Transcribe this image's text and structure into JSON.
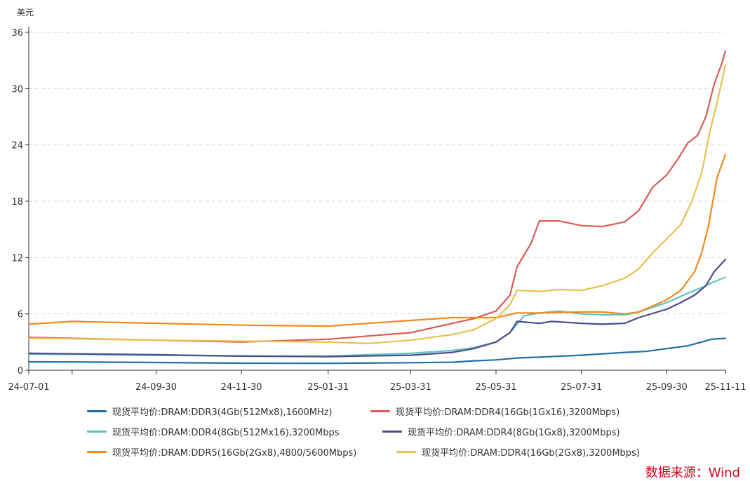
{
  "chart_data": {
    "type": "line",
    "unit_label": "美元",
    "x_start": "24-07-01",
    "x_end": "25-11-11",
    "xtick_labels": [
      "24-07-01",
      "24-09-30",
      "24-11-30",
      "25-01-31",
      "25-03-31",
      "25-05-31",
      "25-07-31",
      "25-09-30",
      "25-11-11"
    ],
    "xtick_minor": [
      "24-08-01"
    ],
    "ylim": [
      0,
      36
    ],
    "yticks": [
      0,
      6,
      12,
      18,
      24,
      30,
      36
    ],
    "grid": "horizontal-dashed",
    "legend_position": "bottom",
    "series": [
      {
        "name": "现货平均价:DRAM:DDR3(4Gb(512Mx8),1600MHz)",
        "color": "#1f6fa5",
        "points": [
          [
            "24-07-01",
            0.9
          ],
          [
            "24-08-01",
            0.88
          ],
          [
            "24-09-30",
            0.82
          ],
          [
            "24-11-30",
            0.75
          ],
          [
            "25-01-31",
            0.73
          ],
          [
            "25-03-31",
            0.8
          ],
          [
            "25-04-30",
            0.85
          ],
          [
            "25-05-15",
            1.0
          ],
          [
            "25-05-31",
            1.1
          ],
          [
            "25-06-15",
            1.3
          ],
          [
            "25-07-01",
            1.4
          ],
          [
            "25-07-31",
            1.6
          ],
          [
            "25-08-31",
            1.9
          ],
          [
            "25-09-15",
            2.0
          ],
          [
            "25-09-30",
            2.3
          ],
          [
            "25-10-15",
            2.6
          ],
          [
            "25-10-25",
            3.0
          ],
          [
            "25-11-01",
            3.3
          ],
          [
            "25-11-11",
            3.4
          ]
        ]
      },
      {
        "name": "现货平均价:DRAM:DDR4(16Gb(1Gx16),3200Mbps)",
        "color": "#dd5b56",
        "points": [
          [
            "24-07-01",
            3.5
          ],
          [
            "24-08-01",
            3.4
          ],
          [
            "24-09-30",
            3.2
          ],
          [
            "24-11-30",
            3.0
          ],
          [
            "25-01-31",
            3.3
          ],
          [
            "25-03-31",
            4.0
          ],
          [
            "25-04-30",
            5.0
          ],
          [
            "25-05-15",
            5.5
          ],
          [
            "25-05-31",
            6.3
          ],
          [
            "25-06-10",
            8.0
          ],
          [
            "25-06-15",
            11.0
          ],
          [
            "25-06-25",
            13.5
          ],
          [
            "25-07-01",
            15.9
          ],
          [
            "25-07-15",
            15.9
          ],
          [
            "25-07-31",
            15.4
          ],
          [
            "25-08-15",
            15.3
          ],
          [
            "25-08-31",
            15.8
          ],
          [
            "25-09-10",
            17.0
          ],
          [
            "25-09-20",
            19.5
          ],
          [
            "25-09-30",
            20.8
          ],
          [
            "25-10-08",
            22.5
          ],
          [
            "25-10-15",
            24.2
          ],
          [
            "25-10-22",
            25.0
          ],
          [
            "25-10-28",
            27.0
          ],
          [
            "25-11-03",
            30.5
          ],
          [
            "25-11-08",
            32.5
          ],
          [
            "25-11-11",
            34.0
          ]
        ]
      },
      {
        "name": "现货平均价:DRAM:DDR4(8Gb(512Mx16),3200Mbps",
        "color": "#5ec4c4",
        "points": [
          [
            "24-07-01",
            1.7
          ],
          [
            "24-08-01",
            1.7
          ],
          [
            "24-09-30",
            1.6
          ],
          [
            "24-11-30",
            1.5
          ],
          [
            "25-01-31",
            1.5
          ],
          [
            "25-03-31",
            1.8
          ],
          [
            "25-04-30",
            2.1
          ],
          [
            "25-05-15",
            2.4
          ],
          [
            "25-05-31",
            3.0
          ],
          [
            "25-06-10",
            4.0
          ],
          [
            "25-06-20",
            5.8
          ],
          [
            "25-07-01",
            6.1
          ],
          [
            "25-07-15",
            6.3
          ],
          [
            "25-07-31",
            6.0
          ],
          [
            "25-08-15",
            5.9
          ],
          [
            "25-08-31",
            5.9
          ],
          [
            "25-09-10",
            6.2
          ],
          [
            "25-09-30",
            7.2
          ],
          [
            "25-10-15",
            8.2
          ],
          [
            "25-10-25",
            8.8
          ],
          [
            "25-11-01",
            9.3
          ],
          [
            "25-11-11",
            9.9
          ]
        ]
      },
      {
        "name": "现货平均价:DRAM:DDR4(8Gb(1Gx8),3200Mbps)",
        "color": "#4a4f8c",
        "points": [
          [
            "24-07-01",
            1.8
          ],
          [
            "24-08-01",
            1.75
          ],
          [
            "24-09-30",
            1.65
          ],
          [
            "24-11-30",
            1.5
          ],
          [
            "25-01-31",
            1.45
          ],
          [
            "25-03-31",
            1.6
          ],
          [
            "25-04-30",
            1.9
          ],
          [
            "25-05-15",
            2.3
          ],
          [
            "25-05-31",
            3.0
          ],
          [
            "25-06-10",
            4.0
          ],
          [
            "25-06-15",
            5.2
          ],
          [
            "25-07-01",
            5.0
          ],
          [
            "25-07-10",
            5.2
          ],
          [
            "25-07-31",
            5.0
          ],
          [
            "25-08-15",
            4.9
          ],
          [
            "25-08-31",
            5.0
          ],
          [
            "25-09-10",
            5.6
          ],
          [
            "25-09-30",
            6.5
          ],
          [
            "25-10-10",
            7.2
          ],
          [
            "25-10-20",
            8.0
          ],
          [
            "25-10-28",
            9.0
          ],
          [
            "25-11-03",
            10.5
          ],
          [
            "25-11-11",
            11.8
          ]
        ]
      },
      {
        "name": "现货平均价:DRAM:DDR5(16Gb(2Gx8),4800/5600Mbps)",
        "color": "#f28a1e",
        "points": [
          [
            "24-07-01",
            4.9
          ],
          [
            "24-08-01",
            5.2
          ],
          [
            "24-09-30",
            5.0
          ],
          [
            "24-11-30",
            4.8
          ],
          [
            "25-01-31",
            4.7
          ],
          [
            "25-03-31",
            5.3
          ],
          [
            "25-04-30",
            5.6
          ],
          [
            "25-05-31",
            5.6
          ],
          [
            "25-06-15",
            6.1
          ],
          [
            "25-07-01",
            6.1
          ],
          [
            "25-07-31",
            6.2
          ],
          [
            "25-08-15",
            6.2
          ],
          [
            "25-08-31",
            6.0
          ],
          [
            "25-09-10",
            6.2
          ],
          [
            "25-09-30",
            7.5
          ],
          [
            "25-10-10",
            8.5
          ],
          [
            "25-10-20",
            10.5
          ],
          [
            "25-10-25",
            12.5
          ],
          [
            "25-10-30",
            15.5
          ],
          [
            "25-11-05",
            20.5
          ],
          [
            "25-11-11",
            23.0
          ]
        ]
      },
      {
        "name": "现货平均价:DRAM:DDR4(16Gb(2Gx8),3200Mbps)",
        "color": "#e8c14f",
        "points": [
          [
            "24-07-01",
            3.4
          ],
          [
            "24-08-01",
            3.35
          ],
          [
            "24-09-30",
            3.2
          ],
          [
            "24-11-30",
            3.1
          ],
          [
            "25-01-31",
            3.0
          ],
          [
            "25-03-01",
            2.85
          ],
          [
            "25-03-31",
            3.2
          ],
          [
            "25-04-30",
            3.8
          ],
          [
            "25-05-15",
            4.3
          ],
          [
            "25-05-31",
            5.5
          ],
          [
            "25-06-10",
            7.0
          ],
          [
            "25-06-15",
            8.5
          ],
          [
            "25-07-01",
            8.4
          ],
          [
            "25-07-15",
            8.6
          ],
          [
            "25-07-31",
            8.5
          ],
          [
            "25-08-15",
            9.0
          ],
          [
            "25-08-31",
            9.8
          ],
          [
            "25-09-10",
            10.8
          ],
          [
            "25-09-20",
            12.5
          ],
          [
            "25-09-30",
            14.0
          ],
          [
            "25-10-10",
            15.5
          ],
          [
            "25-10-18",
            18.0
          ],
          [
            "25-10-25",
            21.0
          ],
          [
            "25-10-31",
            25.5
          ],
          [
            "25-11-05",
            28.5
          ],
          [
            "25-11-11",
            32.5
          ]
        ]
      }
    ]
  },
  "source_text": "数据来源：Wind"
}
